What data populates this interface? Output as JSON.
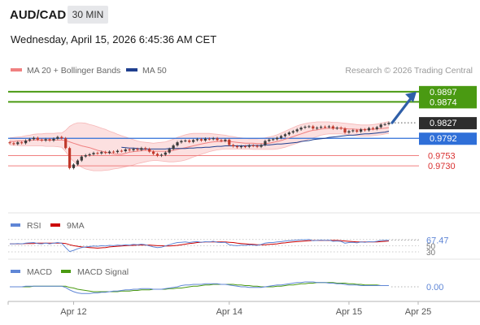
{
  "header": {
    "symbol": "AUD/CAD",
    "timeframe": "30 MIN",
    "datetime": "Wednesday, April 15, 2026 6:45:36 AM CET"
  },
  "legend": {
    "ma20": "MA 20 + Bollinger Bands",
    "ma50": "MA 50",
    "credit": "Research © 2026 Trading Central"
  },
  "colors": {
    "up": "#3a3a3a",
    "down": "#c0392b",
    "ma20": "#f08080",
    "ma50": "#1f3f8f",
    "bands": "#fbd5d5",
    "resistance": "#4a9a12",
    "support": "#f08080",
    "pivot": "#2f6fd8",
    "rsi": "#5f86d6",
    "rsi_ma": "#cc0000",
    "macd": "#5f86d6",
    "macd_signal": "#4a9a12",
    "forecast_arrow": "#2f5fa8"
  },
  "chart_data": [
    {
      "type": "line",
      "panel": "price",
      "title": "AUD/CAD",
      "ylim": [
        0.969,
        0.9915
      ],
      "x_ticks": [
        "Apr 12",
        "Apr 14",
        "Apr 15",
        "Apr 25"
      ],
      "levels": [
        {
          "value": 0.9897,
          "label": "0.9897",
          "kind": "resistance"
        },
        {
          "value": 0.9874,
          "label": "0.9874",
          "kind": "resistance"
        },
        {
          "value": 0.9827,
          "label": "0.9827",
          "kind": "last"
        },
        {
          "value": 0.9792,
          "label": "0.9792",
          "kind": "pivot"
        },
        {
          "value": 0.9753,
          "label": "0.9753",
          "kind": "support"
        },
        {
          "value": 0.973,
          "label": "0.9730",
          "kind": "support"
        }
      ],
      "series": [
        {
          "name": "AUD/CAD",
          "values": [
            0.9781,
            0.9779,
            0.9783,
            0.9781,
            0.9787,
            0.979,
            0.9793,
            0.9789,
            0.9787,
            0.979,
            0.9787,
            0.9791,
            0.9795,
            0.9792,
            0.977,
            0.9725,
            0.9733,
            0.9742,
            0.9751,
            0.9754,
            0.9756,
            0.9759,
            0.9758,
            0.9761,
            0.9759,
            0.9762,
            0.9761,
            0.9764,
            0.9763,
            0.9767,
            0.9765,
            0.9768,
            0.9766,
            0.977,
            0.9768,
            0.9762,
            0.9757,
            0.9753,
            0.9755,
            0.976,
            0.9768,
            0.9776,
            0.9783,
            0.9786,
            0.9787,
            0.9784,
            0.9788,
            0.979,
            0.9787,
            0.9791,
            0.979,
            0.9792,
            0.9788,
            0.9786,
            0.9789,
            0.9777,
            0.9774,
            0.9772,
            0.9774,
            0.9773,
            0.9776,
            0.9775,
            0.9773,
            0.9777,
            0.9786,
            0.9789,
            0.979,
            0.9793,
            0.9797,
            0.9801,
            0.9805,
            0.9808,
            0.9812,
            0.9816,
            0.9818,
            0.9819,
            0.9814,
            0.9816,
            0.9818,
            0.9817,
            0.9819,
            0.9814,
            0.9816,
            0.9814,
            0.9805,
            0.9808,
            0.981,
            0.9807,
            0.9812,
            0.981,
            0.9815,
            0.9813,
            0.9817,
            0.9823,
            0.9824,
            0.9827
          ]
        },
        {
          "name": "MA 20",
          "values": [
            0.9785,
            0.9785,
            0.9786,
            0.9786,
            0.9786,
            0.9787,
            0.9788,
            0.9788,
            0.9788,
            0.9788,
            0.9788,
            0.9788,
            0.9788,
            0.9788,
            0.9787,
            0.9784,
            0.9781,
            0.9778,
            0.9775,
            0.9773,
            0.9771,
            0.9768,
            0.9765,
            0.9763,
            0.9761,
            0.9759,
            0.9757,
            0.9756,
            0.9756,
            0.9758,
            0.9761,
            0.9762,
            0.9763,
            0.9764,
            0.9765,
            0.9764,
            0.9763,
            0.9763,
            0.9763,
            0.9763,
            0.9763,
            0.9765,
            0.9767,
            0.9769,
            0.9771,
            0.9773,
            0.9775,
            0.9777,
            0.9779,
            0.9781,
            0.9783,
            0.9784,
            0.9785,
            0.9785,
            0.9786,
            0.9785,
            0.9784,
            0.9783,
            0.9782,
            0.9781,
            0.9781,
            0.9781,
            0.978,
            0.978,
            0.978,
            0.9781,
            0.9783,
            0.9785,
            0.9787,
            0.979,
            0.9793,
            0.9796,
            0.9799,
            0.9802,
            0.9805,
            0.9808,
            0.981,
            0.9811,
            0.9813,
            0.9814,
            0.9815,
            0.9815,
            0.9815,
            0.9815,
            0.9814,
            0.9813,
            0.9813,
            0.9812,
            0.9812,
            0.9812,
            0.9812,
            0.9812,
            0.9813,
            0.9814,
            0.9815,
            0.9816
          ]
        },
        {
          "name": "Bollinger upper",
          "values": [
            0.9793,
            0.9794,
            0.9795,
            0.9796,
            0.9798,
            0.9799,
            0.9801,
            0.9802,
            0.9802,
            0.9803,
            0.9803,
            0.9803,
            0.9804,
            0.9804,
            0.981,
            0.9819,
            0.9824,
            0.9827,
            0.9827,
            0.9826,
            0.9823,
            0.9821,
            0.9818,
            0.9815,
            0.9812,
            0.9808,
            0.9805,
            0.9801,
            0.9798,
            0.9795,
            0.9792,
            0.9789,
            0.9786,
            0.9784,
            0.9783,
            0.9782,
            0.9781,
            0.9782,
            0.9783,
            0.9784,
            0.9787,
            0.979,
            0.9794,
            0.9797,
            0.98,
            0.9802,
            0.9803,
            0.9803,
            0.9803,
            0.9803,
            0.9803,
            0.9802,
            0.9801,
            0.98,
            0.9799,
            0.9797,
            0.9796,
            0.9794,
            0.9793,
            0.9792,
            0.9791,
            0.9791,
            0.9791,
            0.9792,
            0.9793,
            0.9795,
            0.9797,
            0.98,
            0.9804,
            0.9808,
            0.9812,
            0.9816,
            0.982,
            0.9823,
            0.9825,
            0.9827,
            0.9828,
            0.9829,
            0.9829,
            0.9829,
            0.9829,
            0.9828,
            0.9828,
            0.9827,
            0.9826,
            0.9825,
            0.9824,
            0.9823,
            0.9822,
            0.9822,
            0.9822,
            0.9823,
            0.9824,
            0.9826,
            0.9828,
            0.983
          ]
        },
        {
          "name": "Bollinger lower",
          "values": [
            0.9777,
            0.9776,
            0.9776,
            0.9775,
            0.9775,
            0.9775,
            0.9775,
            0.9775,
            0.9775,
            0.9774,
            0.9774,
            0.9774,
            0.9773,
            0.9772,
            0.9762,
            0.9749,
            0.974,
            0.9733,
            0.9727,
            0.9723,
            0.9721,
            0.9719,
            0.9719,
            0.9719,
            0.972,
            0.9721,
            0.9723,
            0.9724,
            0.9726,
            0.9728,
            0.973,
            0.9732,
            0.9735,
            0.9737,
            0.9739,
            0.9741,
            0.9742,
            0.9742,
            0.9741,
            0.974,
            0.9739,
            0.9739,
            0.974,
            0.9741,
            0.9743,
            0.9746,
            0.975,
            0.9753,
            0.9756,
            0.9759,
            0.9762,
            0.9764,
            0.9766,
            0.9767,
            0.9768,
            0.9768,
            0.9768,
            0.9768,
            0.9768,
            0.9768,
            0.9768,
            0.9767,
            0.9767,
            0.9767,
            0.9767,
            0.9767,
            0.9767,
            0.9768,
            0.977,
            0.9772,
            0.9775,
            0.9778,
            0.9781,
            0.9784,
            0.9787,
            0.979,
            0.9793,
            0.9796,
            0.9799,
            0.9801,
            0.9802,
            0.9802,
            0.9802,
            0.9802,
            0.9801,
            0.98,
            0.9799,
            0.9798,
            0.9797,
            0.9797,
            0.9797,
            0.9798,
            0.9799,
            0.98,
            0.9802,
            0.9803
          ]
        },
        {
          "name": "MA 50",
          "values": [
            null,
            null,
            null,
            null,
            null,
            null,
            null,
            null,
            null,
            null,
            null,
            null,
            null,
            null,
            null,
            null,
            null,
            null,
            null,
            null,
            null,
            null,
            null,
            null,
            null,
            null,
            null,
            null,
            0.9772,
            0.9771,
            0.977,
            0.977,
            0.9769,
            0.9768,
            0.9768,
            0.9768,
            0.9768,
            0.9768,
            0.9768,
            0.9768,
            0.9769,
            0.9769,
            0.9769,
            0.9769,
            0.9769,
            0.977,
            0.977,
            0.9771,
            0.9771,
            0.9772,
            0.9772,
            0.9773,
            0.9774,
            0.9774,
            0.9775,
            0.9775,
            0.9775,
            0.9775,
            0.9775,
            0.9775,
            0.9776,
            0.9776,
            0.9776,
            0.9776,
            0.9777,
            0.9777,
            0.9778,
            0.9779,
            0.9779,
            0.978,
            0.9781,
            0.9782,
            0.9783,
            0.9785,
            0.9786,
            0.9787,
            0.9789,
            0.979,
            0.9791,
            0.9792,
            0.9794,
            0.9795,
            0.9796,
            0.9797,
            0.9798,
            0.9799,
            0.9799,
            0.98,
            0.9801,
            0.9802,
            0.9802,
            0.9803,
            0.9804,
            0.9805,
            0.9806,
            0.9808
          ]
        }
      ],
      "forecast": {
        "from": 0.9827,
        "to": 0.9897
      }
    },
    {
      "type": "line",
      "panel": "rsi",
      "ylim": [
        30,
        85
      ],
      "ticks": [
        "50",
        "30"
      ],
      "last_label": "67.47",
      "legend": [
        "RSI",
        "9MA"
      ],
      "series": [
        {
          "name": "RSI",
          "values": [
            56,
            56,
            57,
            56,
            58,
            59,
            60,
            57,
            56,
            58,
            56,
            58,
            60,
            58,
            44,
            31,
            35,
            40,
            44,
            46,
            47,
            49,
            48,
            50,
            49,
            51,
            50,
            52,
            51,
            53,
            52,
            54,
            53,
            55,
            53,
            49,
            46,
            44,
            45,
            49,
            53,
            57,
            60,
            61,
            62,
            60,
            62,
            63,
            61,
            63,
            62,
            64,
            61,
            60,
            61,
            53,
            51,
            50,
            52,
            51,
            53,
            52,
            51,
            54,
            58,
            60,
            60,
            62,
            63,
            65,
            66,
            67,
            68,
            69,
            69,
            70,
            66,
            67,
            68,
            67,
            68,
            64,
            65,
            64,
            58,
            60,
            61,
            59,
            62,
            61,
            63,
            62,
            64,
            67,
            67,
            67.47
          ]
        },
        {
          "name": "9MA",
          "values": [
            56,
            56,
            56,
            56,
            57,
            57,
            57,
            58,
            58,
            58,
            58,
            58,
            58,
            58,
            57,
            53,
            50,
            48,
            46,
            45,
            44,
            43,
            42,
            43,
            44,
            46,
            47,
            48,
            49,
            50,
            51,
            51,
            52,
            52,
            52,
            52,
            51,
            50,
            50,
            49,
            49,
            50,
            51,
            53,
            55,
            57,
            58,
            60,
            61,
            62,
            62,
            62,
            62,
            62,
            62,
            61,
            60,
            58,
            57,
            56,
            55,
            54,
            53,
            53,
            53,
            54,
            55,
            56,
            58,
            59,
            61,
            62,
            63,
            64,
            65,
            66,
            67,
            67,
            67,
            67,
            67,
            67,
            67,
            66,
            65,
            64,
            63,
            62,
            62,
            62,
            62,
            62,
            62,
            63,
            64,
            65
          ]
        }
      ]
    },
    {
      "type": "line",
      "panel": "macd",
      "ylim": [
        -0.0012,
        0.0012
      ],
      "last_label": "0.00",
      "legend": [
        "MACD",
        "MACD Signal"
      ],
      "series": [
        {
          "name": "MACD",
          "values": [
            0.0,
            0.0,
            0.0,
            0.0,
            0.0001,
            0.0001,
            0.0001,
            0.0001,
            0.0001,
            0.0001,
            0.0001,
            0.0001,
            0.0001,
            0.0001,
            -0.0001,
            -0.0005,
            -0.0008,
            -0.001,
            -0.0011,
            -0.0011,
            -0.0011,
            -0.001,
            -0.001,
            -0.0009,
            -0.0009,
            -0.0008,
            -0.0007,
            -0.0007,
            -0.0006,
            -0.0005,
            -0.0005,
            -0.0004,
            -0.0004,
            -0.0003,
            -0.0003,
            -0.0003,
            -0.0004,
            -0.0004,
            -0.0004,
            -0.0003,
            -0.0002,
            -0.0001,
            0.0,
            0.0002,
            0.0003,
            0.0003,
            0.0004,
            0.0004,
            0.0004,
            0.0005,
            0.0005,
            0.0005,
            0.0005,
            0.0004,
            0.0004,
            0.0003,
            0.0002,
            0.0001,
            0.0,
            0.0,
            -0.0001,
            -0.0001,
            -0.0001,
            -0.0001,
            0.0,
            0.0001,
            0.0002,
            0.0003,
            0.0003,
            0.0004,
            0.0005,
            0.0006,
            0.0007,
            0.0007,
            0.0008,
            0.0008,
            0.0008,
            0.0007,
            0.0007,
            0.0007,
            0.0006,
            0.0006,
            0.0005,
            0.0005,
            0.0004,
            0.0003,
            0.0003,
            0.0003,
            0.0002,
            0.0002,
            0.0002,
            0.0002,
            0.0002,
            0.0002,
            0.0002,
            0.0002
          ]
        },
        {
          "name": "MACD Signal",
          "values": [
            0.0,
            0.0,
            0.0,
            0.0,
            0.0,
            0.0,
            0.0001,
            0.0001,
            0.0001,
            0.0001,
            0.0001,
            0.0001,
            0.0001,
            0.0001,
            0.0001,
            -0.0001,
            -0.0002,
            -0.0004,
            -0.0005,
            -0.0006,
            -0.0007,
            -0.0008,
            -0.0008,
            -0.0008,
            -0.0008,
            -0.0008,
            -0.0008,
            -0.0008,
            -0.0007,
            -0.0007,
            -0.0007,
            -0.0006,
            -0.0006,
            -0.0005,
            -0.0005,
            -0.0005,
            -0.0004,
            -0.0004,
            -0.0004,
            -0.0004,
            -0.0003,
            -0.0003,
            -0.0002,
            -0.0002,
            -0.0001,
            0.0,
            0.0001,
            0.0001,
            0.0002,
            0.0003,
            0.0003,
            0.0004,
            0.0004,
            0.0004,
            0.0004,
            0.0004,
            0.0004,
            0.0003,
            0.0003,
            0.0002,
            0.0002,
            0.0001,
            0.0001,
            0.0,
            0.0,
            0.0,
            0.0,
            0.0001,
            0.0001,
            0.0002,
            0.0003,
            0.0003,
            0.0004,
            0.0005,
            0.0005,
            0.0006,
            0.0006,
            0.0007,
            0.0007,
            0.0007,
            0.0007,
            0.0007,
            0.0006,
            0.0006,
            0.0006,
            0.0005,
            0.0005,
            0.0004,
            0.0004,
            0.0003,
            0.0003,
            0.0003,
            0.0003,
            0.0002,
            0.0002,
            0.0002
          ]
        }
      ]
    }
  ]
}
